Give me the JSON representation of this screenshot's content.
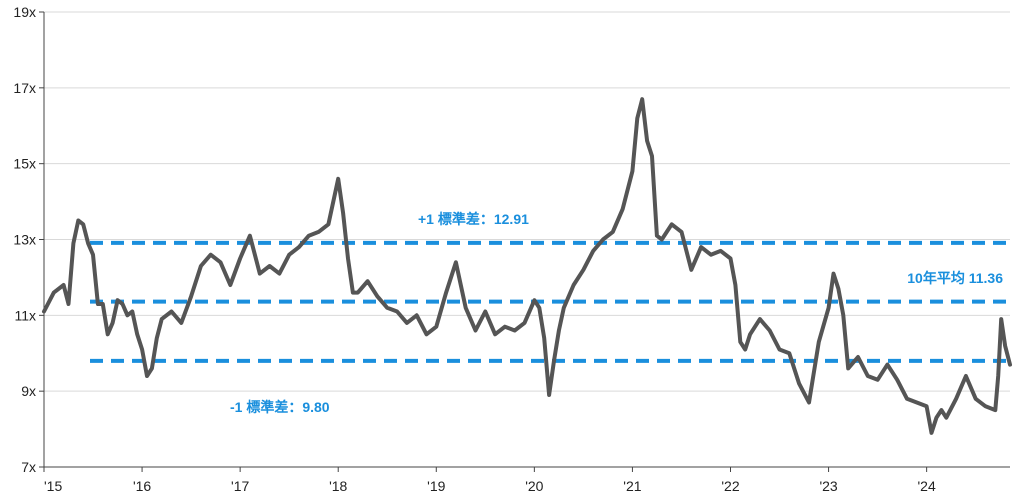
{
  "chart_data": {
    "type": "line",
    "title": "",
    "xlabel": "",
    "ylabel": "",
    "ylim": [
      7,
      19
    ],
    "xlim": [
      2015.0,
      2024.85
    ],
    "y_ticks": [
      7,
      9,
      11,
      13,
      15,
      17,
      19
    ],
    "y_tick_labels": [
      "7x",
      "9x",
      "11x",
      "13x",
      "15x",
      "17x",
      "19x"
    ],
    "x_ticks": [
      2015,
      2016,
      2017,
      2018,
      2019,
      2020,
      2021,
      2022,
      2023,
      2024
    ],
    "x_tick_labels": [
      "'15",
      "'16",
      "'17",
      "'18",
      "'19",
      "'20",
      "'21",
      "'22",
      "'23",
      "'24"
    ],
    "grid": "horizontal",
    "colors": {
      "series": "#555555",
      "reference": "#1a8fdd",
      "grid": "#d9d9d9"
    },
    "reference_lines": [
      {
        "label": "+1 標準差：12.91",
        "value": 12.91
      },
      {
        "label": "10年平均 11.36",
        "value": 11.36
      },
      {
        "label": "-1 標準差：9.80",
        "value": 9.8
      }
    ],
    "series": [
      {
        "name": "",
        "x": [
          2015.0,
          2015.1,
          2015.2,
          2015.25,
          2015.3,
          2015.35,
          2015.4,
          2015.45,
          2015.5,
          2015.55,
          2015.6,
          2015.65,
          2015.7,
          2015.75,
          2015.8,
          2015.85,
          2015.9,
          2015.95,
          2016.0,
          2016.05,
          2016.1,
          2016.15,
          2016.2,
          2016.3,
          2016.4,
          2016.5,
          2016.6,
          2016.7,
          2016.8,
          2016.9,
          2017.0,
          2017.1,
          2017.2,
          2017.3,
          2017.4,
          2017.5,
          2017.6,
          2017.7,
          2017.8,
          2017.9,
          2018.0,
          2018.05,
          2018.1,
          2018.15,
          2018.2,
          2018.3,
          2018.4,
          2018.5,
          2018.6,
          2018.7,
          2018.8,
          2018.9,
          2019.0,
          2019.1,
          2019.2,
          2019.3,
          2019.4,
          2019.5,
          2019.6,
          2019.7,
          2019.8,
          2019.9,
          2020.0,
          2020.05,
          2020.1,
          2020.15,
          2020.2,
          2020.25,
          2020.3,
          2020.4,
          2020.5,
          2020.6,
          2020.7,
          2020.8,
          2020.9,
          2021.0,
          2021.05,
          2021.1,
          2021.15,
          2021.2,
          2021.25,
          2021.3,
          2021.4,
          2021.5,
          2021.6,
          2021.7,
          2021.8,
          2021.9,
          2022.0,
          2022.05,
          2022.1,
          2022.15,
          2022.2,
          2022.3,
          2022.4,
          2022.5,
          2022.6,
          2022.7,
          2022.8,
          2022.9,
          2023.0,
          2023.05,
          2023.1,
          2023.15,
          2023.2,
          2023.3,
          2023.4,
          2023.5,
          2023.6,
          2023.7,
          2023.8,
          2023.9,
          2024.0,
          2024.05,
          2024.1,
          2024.15,
          2024.2,
          2024.3,
          2024.4,
          2024.5,
          2024.6,
          2024.7,
          2024.73,
          2024.76,
          2024.8,
          2024.85
        ],
        "values": [
          11.1,
          11.6,
          11.8,
          11.3,
          12.9,
          13.5,
          13.4,
          12.9,
          12.6,
          11.3,
          11.3,
          10.5,
          10.8,
          11.4,
          11.3,
          11.0,
          11.1,
          10.5,
          10.1,
          9.4,
          9.6,
          10.4,
          10.9,
          11.1,
          10.8,
          11.5,
          12.3,
          12.6,
          12.4,
          11.8,
          12.5,
          13.1,
          12.1,
          12.3,
          12.1,
          12.6,
          12.8,
          13.1,
          13.2,
          13.4,
          14.6,
          13.7,
          12.5,
          11.6,
          11.6,
          11.9,
          11.5,
          11.2,
          11.1,
          10.8,
          11.0,
          10.5,
          10.7,
          11.6,
          12.4,
          11.2,
          10.6,
          11.1,
          10.5,
          10.7,
          10.6,
          10.8,
          11.4,
          11.2,
          10.4,
          8.9,
          9.8,
          10.6,
          11.2,
          11.8,
          12.2,
          12.7,
          13.0,
          13.2,
          13.8,
          14.8,
          16.2,
          16.7,
          15.6,
          15.2,
          13.1,
          13.0,
          13.4,
          13.2,
          12.2,
          12.8,
          12.6,
          12.7,
          12.5,
          11.8,
          10.3,
          10.1,
          10.5,
          10.9,
          10.6,
          10.1,
          10.0,
          9.2,
          8.7,
          10.3,
          11.2,
          12.1,
          11.7,
          11.0,
          9.6,
          9.9,
          9.4,
          9.3,
          9.7,
          9.3,
          8.8,
          8.7,
          8.6,
          7.9,
          8.3,
          8.5,
          8.3,
          8.8,
          9.4,
          8.8,
          8.6,
          8.5,
          9.4,
          10.9,
          10.2,
          9.7
        ]
      }
    ]
  }
}
